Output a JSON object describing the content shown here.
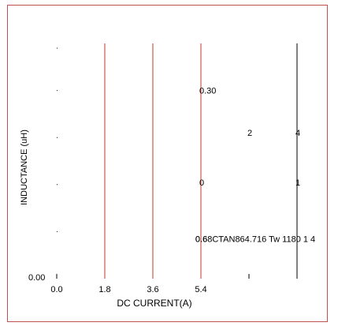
{
  "chart_data": {
    "type": "line",
    "title": "",
    "xlabel": "DC CURRENT(A)",
    "ylabel": "INDUCTANCE (uH)",
    "x_ticks": [
      "0.0",
      "1.8",
      "3.6",
      "5.4"
    ],
    "x_tick_values": [
      0.0,
      1.8,
      3.6,
      5.4
    ],
    "y_bottom_label": "0.00",
    "xlim": [
      0,
      10.8
    ],
    "grid": false,
    "frame_color": "#c0504d",
    "series_color": "#c0392b",
    "vertical_lines": [
      {
        "x": 1.8,
        "color": "#c0392b"
      },
      {
        "x": 3.6,
        "color": "#c0392b"
      },
      {
        "x": 5.4,
        "color": "#c0392b"
      },
      {
        "x": 9.0,
        "color": "#000000"
      }
    ],
    "annotations": [
      {
        "text": "0.30",
        "x": 5.4,
        "level": 0.8
      },
      {
        "text": "2",
        "x": 7.2,
        "level": 0.62
      },
      {
        "text": "4",
        "x": 9.0,
        "level": 0.62
      },
      {
        "text": "0",
        "x": 5.4,
        "level": 0.41
      },
      {
        "text": "1",
        "x": 9.0,
        "level": 0.41
      },
      {
        "text": "0.6",
        "x": 5.25,
        "level": 0.17
      },
      {
        "text": "0.68CTAN864.716 Tw 1180 1 4",
        "x": 5.25,
        "level": 0.17
      }
    ]
  }
}
